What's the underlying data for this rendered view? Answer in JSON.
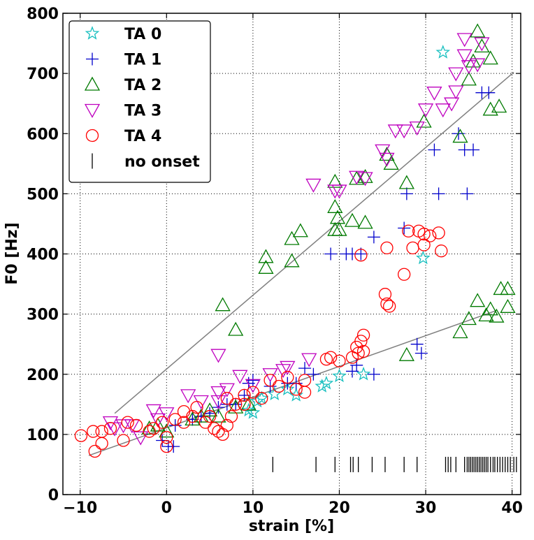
{
  "chart_data": {
    "type": "scatter",
    "xlabel": "strain [%]",
    "ylabel": "F0 [Hz]",
    "xlim": [
      -12,
      41
    ],
    "ylim": [
      0,
      800
    ],
    "x_ticks": [
      -10,
      0,
      10,
      20,
      30,
      40
    ],
    "y_ticks": [
      0,
      100,
      200,
      300,
      400,
      500,
      600,
      700,
      800
    ],
    "grid": true,
    "legend_position": "top-left",
    "series": [
      {
        "name": "TA 0",
        "marker": "star",
        "color": "#17bfbf",
        "points": [
          [
            29.7,
            393
          ],
          [
            32,
            735
          ],
          [
            22.8,
            200
          ],
          [
            20,
            197
          ],
          [
            18.5,
            185
          ],
          [
            18,
            180
          ],
          [
            15,
            165
          ],
          [
            14,
            175
          ],
          [
            12.5,
            167
          ],
          [
            10,
            136
          ],
          [
            9.5,
            140
          ],
          [
            10.5,
            155
          ],
          [
            11,
            160
          ]
        ]
      },
      {
        "name": "TA 1",
        "marker": "plus",
        "color": "#0000cc",
        "points": [
          [
            36.5,
            668
          ],
          [
            37.3,
            668
          ],
          [
            33.8,
            600
          ],
          [
            34.5,
            573
          ],
          [
            35.5,
            573
          ],
          [
            31,
            573
          ],
          [
            31.5,
            500
          ],
          [
            34.8,
            500
          ],
          [
            27.8,
            500
          ],
          [
            27.5,
            443
          ],
          [
            24,
            428
          ],
          [
            19,
            400
          ],
          [
            20.8,
            400
          ],
          [
            21.5,
            400
          ],
          [
            22.5,
            400
          ],
          [
            29,
            250
          ],
          [
            29.5,
            235
          ],
          [
            22,
            215
          ],
          [
            24,
            200
          ],
          [
            21.5,
            205
          ],
          [
            16,
            210
          ],
          [
            17,
            200
          ],
          [
            15,
            185
          ],
          [
            14,
            185
          ],
          [
            12,
            180
          ],
          [
            10,
            190
          ],
          [
            9.5,
            185
          ],
          [
            9,
            165
          ],
          [
            8,
            150
          ],
          [
            7,
            150
          ],
          [
            6,
            145
          ],
          [
            5,
            135
          ],
          [
            4,
            130
          ],
          [
            3,
            125
          ],
          [
            1,
            115
          ],
          [
            0.8,
            80
          ],
          [
            0.2,
            80
          ],
          [
            -0.5,
            90
          ]
        ]
      },
      {
        "name": "TA 2",
        "marker": "triangle-up",
        "color": "#007a00",
        "points": [
          [
            36,
            770
          ],
          [
            36.5,
            745
          ],
          [
            35.5,
            720
          ],
          [
            37.5,
            725
          ],
          [
            35,
            690
          ],
          [
            38.5,
            645
          ],
          [
            37.5,
            640
          ],
          [
            34,
            595
          ],
          [
            29.8,
            620
          ],
          [
            25.5,
            565
          ],
          [
            26,
            550
          ],
          [
            27.8,
            518
          ],
          [
            23,
            528
          ],
          [
            22,
            525
          ],
          [
            19.5,
            520
          ],
          [
            19.5,
            478
          ],
          [
            19.8,
            460
          ],
          [
            19.5,
            440
          ],
          [
            20,
            440
          ],
          [
            21.5,
            455
          ],
          [
            23,
            452
          ],
          [
            15.5,
            438
          ],
          [
            14.5,
            425
          ],
          [
            11.5,
            395
          ],
          [
            11.5,
            377
          ],
          [
            14.5,
            388
          ],
          [
            6.5,
            315
          ],
          [
            8,
            274
          ],
          [
            27.8,
            232
          ],
          [
            38.7,
            342
          ],
          [
            39.5,
            342
          ],
          [
            36,
            322
          ],
          [
            39.5,
            312
          ],
          [
            37.5,
            308
          ],
          [
            37,
            298
          ],
          [
            38.2,
            296
          ],
          [
            35,
            292
          ],
          [
            34,
            270
          ],
          [
            5,
            140
          ],
          [
            4,
            130
          ],
          [
            3,
            125
          ],
          [
            -2,
            110
          ],
          [
            -1,
            115
          ],
          [
            0,
            105
          ],
          [
            6,
            130
          ],
          [
            9.5,
            150
          ],
          [
            8,
            145
          ]
        ]
      },
      {
        "name": "TA 3",
        "marker": "triangle-down",
        "color": "#bf00bf",
        "points": [
          [
            34.5,
            757
          ],
          [
            36.5,
            750
          ],
          [
            36,
            715
          ],
          [
            35,
            712
          ],
          [
            34.5,
            730
          ],
          [
            33.5,
            700
          ],
          [
            33.5,
            670
          ],
          [
            31,
            668
          ],
          [
            32,
            640
          ],
          [
            33,
            650
          ],
          [
            30,
            640
          ],
          [
            29,
            610
          ],
          [
            27.5,
            605
          ],
          [
            26.5,
            605
          ],
          [
            25,
            572
          ],
          [
            25.5,
            558
          ],
          [
            22,
            528
          ],
          [
            23,
            526
          ],
          [
            17,
            515
          ],
          [
            19.5,
            505
          ],
          [
            20,
            505
          ],
          [
            6,
            232
          ],
          [
            8.5,
            197
          ],
          [
            10,
            182
          ],
          [
            12,
            200
          ],
          [
            13.5,
            207
          ],
          [
            14,
            212
          ],
          [
            16.5,
            225
          ],
          [
            7,
            175
          ],
          [
            6,
            170
          ],
          [
            6,
            155
          ],
          [
            4,
            155
          ],
          [
            2.5,
            165
          ],
          [
            0,
            135
          ],
          [
            -1,
            125
          ],
          [
            -1.5,
            140
          ],
          [
            -3,
            95
          ],
          [
            -5,
            115
          ],
          [
            -6,
            110
          ],
          [
            -6.5,
            120
          ],
          [
            -4,
            115
          ]
        ]
      },
      {
        "name": "TA 4",
        "marker": "circle",
        "color": "#ff0000",
        "points": [
          [
            -9.9,
            98
          ],
          [
            -8.5,
            105
          ],
          [
            -7.5,
            105
          ],
          [
            -8.3,
            72
          ],
          [
            -7.5,
            85
          ],
          [
            -6.5,
            110
          ],
          [
            -5,
            90
          ],
          [
            -4.5,
            120
          ],
          [
            -3.5,
            115
          ],
          [
            -2,
            105
          ],
          [
            -1.5,
            110
          ],
          [
            -0.5,
            120
          ],
          [
            0,
            95
          ],
          [
            0,
            80
          ],
          [
            1,
            125
          ],
          [
            2,
            120
          ],
          [
            2,
            138
          ],
          [
            3,
            130
          ],
          [
            3.5,
            145
          ],
          [
            4.5,
            120
          ],
          [
            5,
            130
          ],
          [
            5.5,
            110
          ],
          [
            6,
            105
          ],
          [
            6.5,
            100
          ],
          [
            7,
            115
          ],
          [
            7.5,
            130
          ],
          [
            8,
            150
          ],
          [
            7,
            160
          ],
          [
            9,
            150
          ],
          [
            9,
            165
          ],
          [
            10,
            170
          ],
          [
            11,
            160
          ],
          [
            12,
            190
          ],
          [
            13,
            180
          ],
          [
            14,
            195
          ],
          [
            15,
            175
          ],
          [
            16,
            190
          ],
          [
            16,
            170
          ],
          [
            18.5,
            225
          ],
          [
            19,
            228
          ],
          [
            20,
            222
          ],
          [
            21.5,
            228
          ],
          [
            22,
            245
          ],
          [
            22.5,
            255
          ],
          [
            22.8,
            265
          ],
          [
            22.2,
            235
          ],
          [
            22.8,
            238
          ],
          [
            22.5,
            398
          ],
          [
            25.5,
            410
          ],
          [
            25.3,
            333
          ],
          [
            25.5,
            317
          ],
          [
            25.8,
            313
          ],
          [
            27.5,
            366
          ],
          [
            28,
            438
          ],
          [
            28.5,
            410
          ],
          [
            29.2,
            438
          ],
          [
            29.8,
            433
          ],
          [
            30.5,
            430
          ],
          [
            29.8,
            415
          ],
          [
            31.5,
            435
          ],
          [
            31.8,
            405
          ]
        ]
      }
    ],
    "no_onset": {
      "name": "no onset",
      "marker": "vline",
      "color": "#000000",
      "x": [
        12.3,
        17.3,
        19.5,
        21.3,
        21.6,
        22.2,
        23.8,
        25.3,
        27.5,
        29,
        32.3,
        32.6,
        32.9,
        33.5,
        34.5,
        34.8,
        35,
        35.2,
        35.4,
        35.6,
        35.8,
        36,
        36.2,
        36.4,
        36.6,
        36.8,
        37,
        37.2,
        37.5,
        37.8,
        38,
        38.3,
        38.6,
        38.9,
        39.2,
        39.5,
        39.8,
        40.2,
        40.5
      ],
      "y": 50
    },
    "fit_lines": [
      {
        "from": [
          -6,
          135
        ],
        "to": [
          40.2,
          702
        ]
      },
      {
        "from": [
          -9,
          65
        ],
        "to": [
          38,
          305
        ]
      }
    ]
  }
}
